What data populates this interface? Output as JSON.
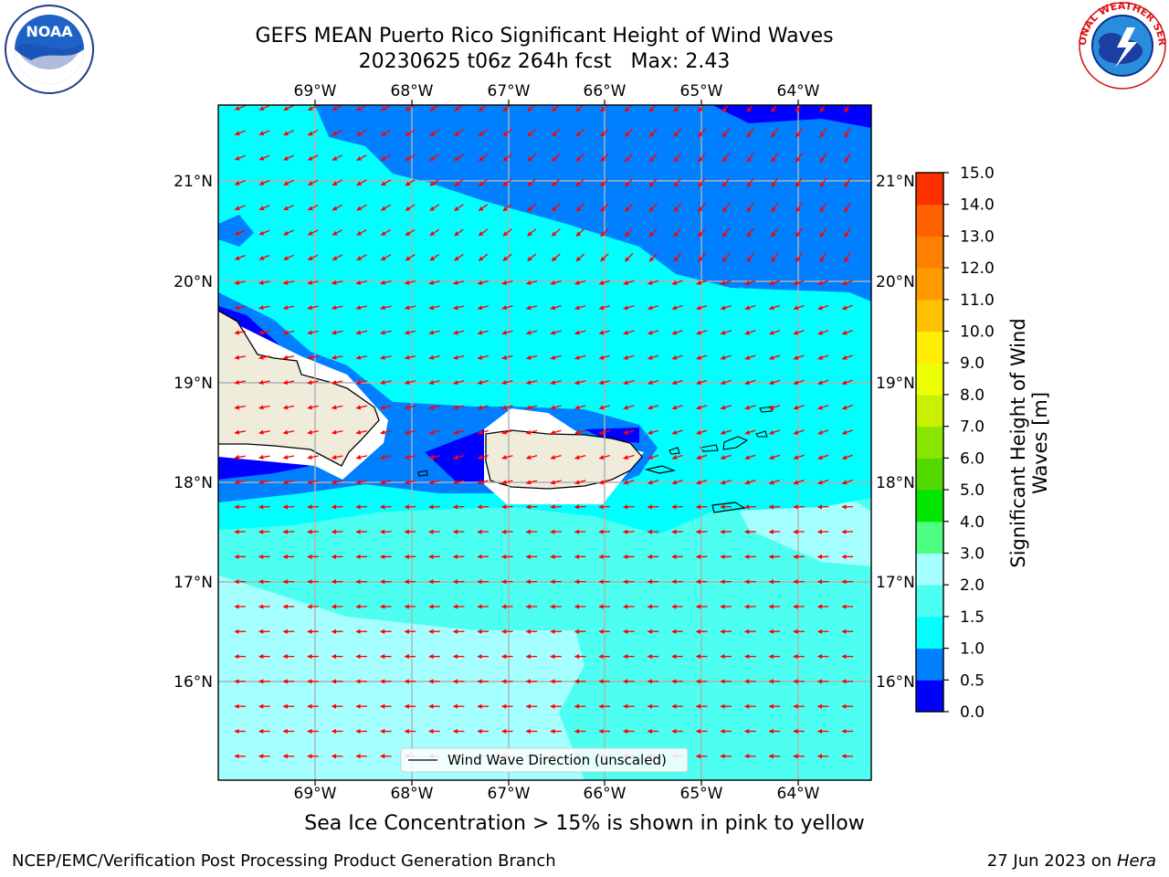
{
  "header": {
    "title_line1": "GEFS MEAN Puerto Rico Significant Height of Wind Waves",
    "title_line2": "20230625 t06z 264h fcst   Max: 2.43"
  },
  "logos": {
    "left": "NOAA",
    "left_ring_text": "NATIONAL OCEANIC AND ATMOSPHERIC ADMINISTRATION · U.S. DEPARTMENT OF COMMERCE",
    "right_ring_text": "NATIONAL WEATHER SERVICE"
  },
  "map": {
    "lon_labels": [
      "69°W",
      "68°W",
      "67°W",
      "66°W",
      "65°W",
      "64°W"
    ],
    "lat_labels": [
      "21°N",
      "20°N",
      "19°N",
      "18°N",
      "17°N",
      "16°N"
    ],
    "legend_label": "Wind Wave Direction (unscaled)",
    "arrow_color": "#ff0000",
    "land_color": "#efecdc"
  },
  "colorbar": {
    "label": "Significant Height of Wind Waves [m]",
    "label_line1": "Significant Height of Wind",
    "label_line2": "Waves [m]",
    "tick_labels": [
      "0.0",
      "0.5",
      "1.0",
      "1.5",
      "2.0",
      "3.0",
      "4.0",
      "5.0",
      "6.0",
      "7.0",
      "8.0",
      "9.0",
      "10.0",
      "11.0",
      "12.0",
      "13.0",
      "14.0",
      "15.0"
    ],
    "colors": [
      "#0000ff",
      "#0080ff",
      "#00ffff",
      "#4dfff0",
      "#a6ffff",
      "#4dff80",
      "#00e600",
      "#52d900",
      "#8ae600",
      "#c8f000",
      "#eeff00",
      "#ffee00",
      "#ffc000",
      "#ff9900",
      "#ff8000",
      "#ff6000",
      "#ff3000",
      "#ff0000"
    ]
  },
  "footer": {
    "note": "Sea Ice Concentration > 15% is shown in pink to yellow",
    "left": "NCEP/EMC/Verification Post Processing Product Generation Branch",
    "right_prefix": "27 Jun 2023 on ",
    "right_host": "Hera"
  }
}
